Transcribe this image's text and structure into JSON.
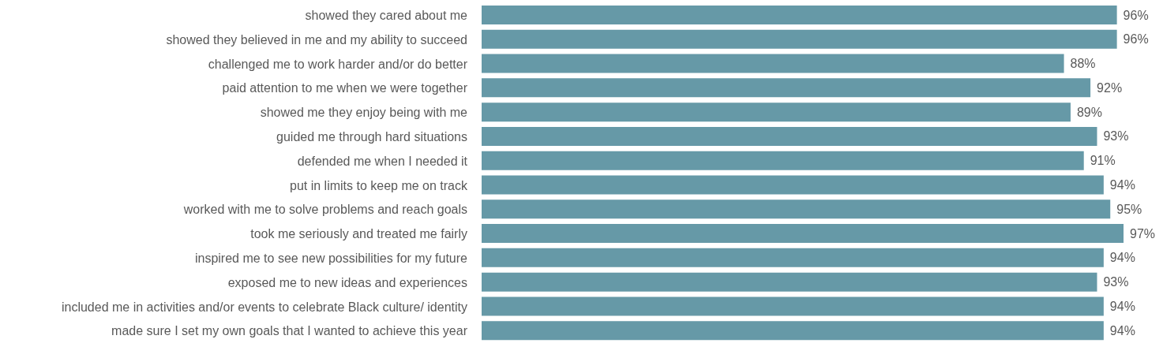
{
  "chart_data": {
    "type": "bar",
    "orientation": "horizontal",
    "categories": [
      "showed they cared about me",
      "showed they believed in me and my ability to succeed",
      "challenged me to work harder and/or do better",
      "paid attention to me when we were together",
      "showed me they enjoy being with me",
      "guided me through hard situations",
      "defended me when I needed it",
      "put in limits to keep me on track",
      "worked with me to solve problems and reach goals",
      "took me seriously and treated me fairly",
      "inspired me to see new possibilities for my future",
      "exposed me to new ideas and experiences",
      "included me in activities and/or events to celebrate Black culture/ identity",
      "made sure I set my own goals that I wanted to achieve this year"
    ],
    "values": [
      96,
      96,
      88,
      92,
      89,
      93,
      91,
      94,
      95,
      97,
      94,
      93,
      94,
      94
    ],
    "value_labels": [
      "96%",
      "96%",
      "88%",
      "92%",
      "89%",
      "93%",
      "91%",
      "94%",
      "95%",
      "97%",
      "94%",
      "93%",
      "94%",
      "94%"
    ],
    "color": "#6699a7"
  }
}
